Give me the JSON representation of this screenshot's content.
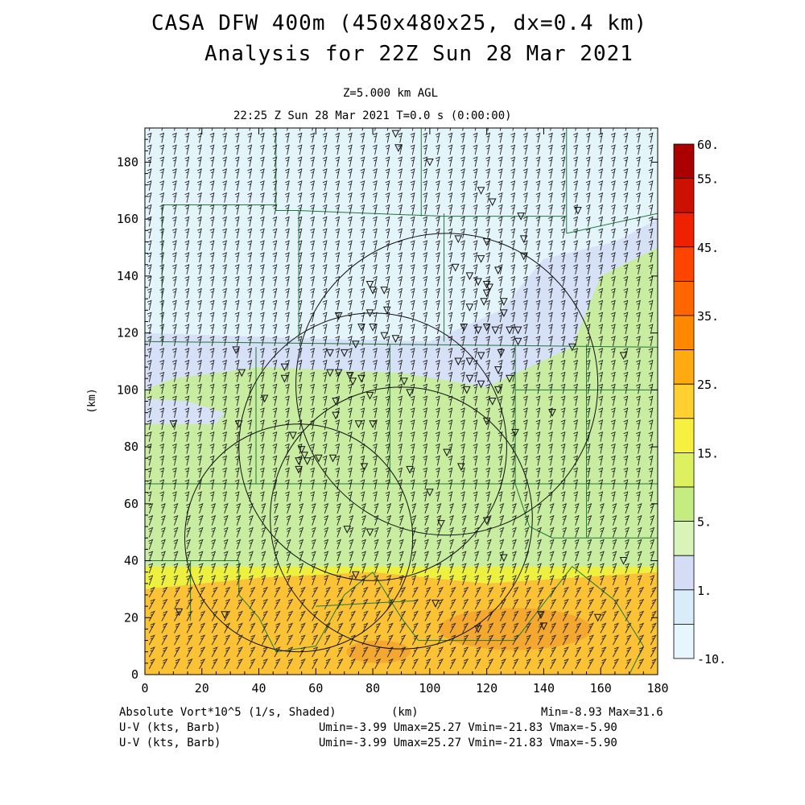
{
  "header": {
    "title1": "CASA DFW 400m (450x480x25, dx=0.4 km)",
    "title2": "Analysis for 22Z Sun 28 Mar 2021",
    "level": "Z=5.000 km AGL",
    "time": "22:25 Z Sun 28 Mar 2021    T=0.0 s (0:00:00)"
  },
  "chart_data": {
    "type": "heatmap",
    "title": "CASA DFW 400m (450x480x25, dx=0.4 km)",
    "xlabel": "(km)",
    "ylabel": "(km)",
    "xlim": [
      0,
      180
    ],
    "ylim": [
      0,
      192
    ],
    "xticks": [
      0,
      20,
      40,
      60,
      80,
      100,
      120,
      140,
      160,
      180
    ],
    "yticks": [
      0,
      20,
      40,
      60,
      80,
      100,
      120,
      140,
      160,
      180
    ],
    "shaded_field": "Absolute Vort*10^5 (1/s, Shaded)",
    "colorbar": {
      "labels": [
        "60.",
        "55.",
        "45.",
        "35.",
        "25.",
        "15.",
        "5.",
        "1.",
        "-10."
      ],
      "label_values": [
        60,
        55,
        45,
        35,
        25,
        15,
        5,
        1,
        -10
      ],
      "colors": [
        "#aa0000",
        "#cc1100",
        "#ee2200",
        "#ff4400",
        "#ff6600",
        "#ff8800",
        "#ffaa11",
        "#ffd030",
        "#f8f040",
        "#ddf060",
        "#c4ec80",
        "#d8f4b8",
        "#d4dcf6",
        "#d8ecfa",
        "#e6f6fc"
      ]
    },
    "regions": [
      {
        "name": "vort < -10 to 1",
        "color": "#e4f4fb",
        "y_from": 120,
        "y_to": 192
      },
      {
        "name": "vort 1 to 3",
        "color": "#d6e0f6",
        "y_from": 95,
        "y_to": 150
      },
      {
        "name": "vort 5 to 10",
        "color": "#c8eca0",
        "y_from": 38,
        "y_to": 100
      },
      {
        "name": "vort 15 to 20",
        "color": "#eef040",
        "y_from": 30,
        "y_to": 38
      },
      {
        "name": "vort 25 to 30",
        "color": "#fbc236",
        "y_from": 0,
        "y_to": 30
      }
    ],
    "range_rings_km": [
      {
        "center": [
          106,
          102
        ],
        "radius": 53
      },
      {
        "center": [
          80,
          80
        ],
        "radius": 47
      },
      {
        "center": [
          90,
          55
        ],
        "radius": 46
      },
      {
        "center": [
          54,
          48
        ],
        "radius": 40
      }
    ],
    "wind_barbs": {
      "fields": [
        "U-V (kts, Barb)",
        "U-V (kts, Barb)"
      ],
      "Umin": -3.99,
      "Umax": 25.27,
      "Vmin": -21.83,
      "Vmax": -5.9
    },
    "field_min": -8.93,
    "field_max": 31.6
  },
  "footer": {
    "line1_left": "Absolute Vort*10^5 (1/s, Shaded)",
    "line1_mid": "(km)",
    "line1_right": "Min=-8.93 Max=31.6",
    "line2_left": "U-V (kts, Barb)",
    "line2_right": "Umin=-3.99 Umax=25.27 Vmin=-21.83 Vmax=-5.90",
    "line3_left": "U-V (kts, Barb)",
    "line3_right": "Umin=-3.99 Umax=25.27 Vmin=-21.83 Vmax=-5.90"
  }
}
